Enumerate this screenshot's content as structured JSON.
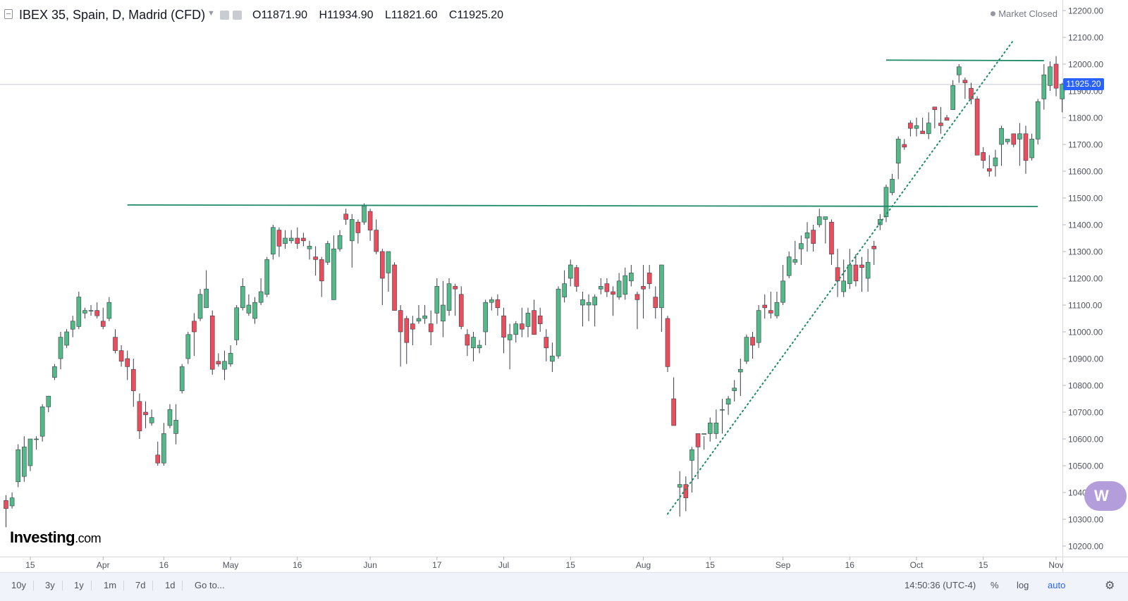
{
  "header": {
    "symbol": "IBEX 35, Spain, D, Madrid (CFD)",
    "open": "O11871.90",
    "high": "H11934.90",
    "low": "L11821.60",
    "close": "C11925.20",
    "market_status": "Market Closed"
  },
  "logo": {
    "name": "Investing",
    "suffix": ".com"
  },
  "last_price_badge": "11925.20",
  "watch_badge": "W",
  "timeframes": [
    "10y",
    "3y",
    "1y",
    "1m",
    "7d",
    "1d"
  ],
  "goto_label": "Go to...",
  "clock": "14:50:36 (UTC-4)",
  "bottom_options": {
    "percent": "%",
    "log": "log",
    "auto": "auto"
  },
  "icons": {
    "menu": "menu-icon",
    "settings": "gear-icon",
    "visibility": "eye-icon",
    "properties": "gear-icon"
  },
  "colors": {
    "up": "#53b987",
    "down": "#eb4d5c",
    "trendline": "#1e8a68",
    "last_price": "#2962ff"
  },
  "chart_data": {
    "type": "candlestick",
    "title": "IBEX 35, Spain, D, Madrid (CFD)",
    "y_ticks": [
      10200,
      10300,
      10400,
      10500,
      10600,
      10700,
      10800,
      10900,
      11000,
      11100,
      11200,
      11300,
      11400,
      11500,
      11600,
      11700,
      11800,
      11900,
      12000,
      12100,
      12200
    ],
    "y_tick_labels": [
      "10200.00",
      "10300.00",
      "10400.00",
      "10500.00",
      "10600.00",
      "10700.00",
      "10800.00",
      "10900.00",
      "11000.00",
      "11100.00",
      "11200.00",
      "11300.00",
      "11400.00",
      "11500.00",
      "11600.00",
      "11700.00",
      "11800.00",
      "11900.00",
      "12000.00",
      "12100.00",
      "12200.00"
    ],
    "ylim": [
      10170,
      12270
    ],
    "x_ticks": [
      {
        "i": 4,
        "label": "15"
      },
      {
        "i": 16,
        "label": "Apr"
      },
      {
        "i": 26,
        "label": "16"
      },
      {
        "i": 37,
        "label": "May"
      },
      {
        "i": 48,
        "label": "16"
      },
      {
        "i": 60,
        "label": "Jun"
      },
      {
        "i": 71,
        "label": "17"
      },
      {
        "i": 82,
        "label": "Jul"
      },
      {
        "i": 93,
        "label": "15"
      },
      {
        "i": 105,
        "label": "Aug"
      },
      {
        "i": 116,
        "label": "15"
      },
      {
        "i": 128,
        "label": "Sep"
      },
      {
        "i": 139,
        "label": "16"
      },
      {
        "i": 150,
        "label": "Oct"
      },
      {
        "i": 161,
        "label": "15"
      },
      {
        "i": 173,
        "label": "Nov"
      }
    ],
    "horizontal_lines": [
      {
        "i1": 20,
        "v1": 11474,
        "i2": 170,
        "v2": 11468
      },
      {
        "i1": 145,
        "v1": 12015,
        "i2": 171,
        "v2": 12013
      }
    ],
    "trend_line": {
      "i1": 109,
      "v1": 10320,
      "i2": 166,
      "v2": 12090
    },
    "last_price": 11925.2,
    "candles": [
      [
        10370,
        10390,
        10270,
        10340
      ],
      [
        10350,
        10400,
        10340,
        10380
      ],
      [
        10440,
        10580,
        10420,
        10560
      ],
      [
        10460,
        10610,
        10440,
        10570
      ],
      [
        10500,
        10600,
        10480,
        10600
      ],
      [
        10600,
        10610,
        10560,
        10600
      ],
      [
        10610,
        10730,
        10590,
        10720
      ],
      [
        10720,
        10760,
        10700,
        10760
      ],
      [
        10830,
        10880,
        10820,
        10870
      ],
      [
        10900,
        11000,
        10860,
        10980
      ],
      [
        10950,
        11010,
        10940,
        11000
      ],
      [
        11010,
        11060,
        10980,
        11040
      ],
      [
        11020,
        11150,
        11010,
        11130
      ],
      [
        11070,
        11090,
        11050,
        11080
      ],
      [
        11080,
        11100,
        11060,
        11080
      ],
      [
        11080,
        11110,
        11050,
        11060
      ],
      [
        11040,
        11090,
        11010,
        11020
      ],
      [
        11050,
        11130,
        11040,
        11110
      ],
      [
        10980,
        11010,
        10920,
        10930
      ],
      [
        10930,
        10950,
        10870,
        10890
      ],
      [
        10900,
        10930,
        10820,
        10870
      ],
      [
        10860,
        10900,
        10720,
        10780
      ],
      [
        10740,
        10770,
        10600,
        10630
      ],
      [
        10700,
        10740,
        10640,
        10690
      ],
      [
        10660,
        10710,
        10650,
        10680
      ],
      [
        10540,
        10590,
        10500,
        10510
      ],
      [
        10510,
        10660,
        10500,
        10620
      ],
      [
        10650,
        10730,
        10640,
        10710
      ],
      [
        10620,
        10730,
        10580,
        10670
      ],
      [
        10780,
        10880,
        10770,
        10870
      ],
      [
        10900,
        11000,
        10880,
        10990
      ],
      [
        11040,
        11070,
        10910,
        11000
      ],
      [
        11050,
        11160,
        11040,
        11140
      ],
      [
        11090,
        11230,
        11090,
        11160
      ],
      [
        11060,
        11080,
        10840,
        10860
      ],
      [
        10890,
        10920,
        10870,
        10880
      ],
      [
        10860,
        10930,
        10820,
        10890
      ],
      [
        10880,
        10950,
        10870,
        10920
      ],
      [
        10970,
        11100,
        10950,
        11090
      ],
      [
        11090,
        11200,
        11080,
        11170
      ],
      [
        11070,
        11140,
        11060,
        11100
      ],
      [
        11050,
        11130,
        11030,
        11110
      ],
      [
        11110,
        11200,
        11100,
        11150
      ],
      [
        11140,
        11280,
        11130,
        11270
      ],
      [
        11290,
        11400,
        11270,
        11390
      ],
      [
        11380,
        11390,
        11280,
        11320
      ],
      [
        11330,
        11380,
        11310,
        11350
      ],
      [
        11340,
        11380,
        11330,
        11350
      ],
      [
        11350,
        11390,
        11310,
        11330
      ],
      [
        11350,
        11370,
        11320,
        11340
      ],
      [
        11310,
        11340,
        11270,
        11320
      ],
      [
        11280,
        11320,
        11210,
        11270
      ],
      [
        11270,
        11280,
        11130,
        11190
      ],
      [
        11260,
        11340,
        11250,
        11330
      ],
      [
        11120,
        11360,
        11120,
        11310
      ],
      [
        11310,
        11380,
        11300,
        11360
      ],
      [
        11440,
        11460,
        11400,
        11420
      ],
      [
        11340,
        11440,
        11240,
        11420
      ],
      [
        11410,
        11420,
        11330,
        11370
      ],
      [
        11410,
        11480,
        11400,
        11470
      ],
      [
        11450,
        11460,
        11340,
        11380
      ],
      [
        11380,
        11420,
        11290,
        11300
      ],
      [
        11300,
        11310,
        11100,
        11200
      ],
      [
        11220,
        11300,
        11150,
        11300
      ],
      [
        11250,
        11260,
        11100,
        11080
      ],
      [
        11080,
        11100,
        10870,
        11000
      ],
      [
        11050,
        11060,
        10880,
        10960
      ],
      [
        11030,
        11060,
        10950,
        11010
      ],
      [
        11040,
        11100,
        11030,
        11050
      ],
      [
        11050,
        11100,
        11030,
        11060
      ],
      [
        11030,
        11080,
        10950,
        11000
      ],
      [
        11070,
        11200,
        11030,
        11170
      ],
      [
        11040,
        11190,
        10980,
        11100
      ],
      [
        11080,
        11200,
        11060,
        11180
      ],
      [
        11170,
        11180,
        11060,
        11160
      ],
      [
        11140,
        11170,
        11010,
        11020
      ],
      [
        10990,
        11010,
        10910,
        10950
      ],
      [
        10940,
        11000,
        10890,
        10980
      ],
      [
        10940,
        10970,
        10920,
        10950
      ],
      [
        11000,
        11120,
        10950,
        11110
      ],
      [
        11110,
        11130,
        11080,
        11120
      ],
      [
        11120,
        11140,
        11060,
        11090
      ],
      [
        11060,
        11090,
        10920,
        10980
      ],
      [
        10970,
        11030,
        10860,
        10990
      ],
      [
        10990,
        11040,
        10960,
        11030
      ],
      [
        11030,
        11090,
        10980,
        11010
      ],
      [
        11020,
        11090,
        10980,
        11070
      ],
      [
        11080,
        11120,
        10990,
        10990
      ],
      [
        11060,
        11090,
        11000,
        11030
      ],
      [
        10980,
        11010,
        10890,
        10940
      ],
      [
        10890,
        10960,
        10850,
        10910
      ],
      [
        10910,
        11170,
        10900,
        11160
      ],
      [
        11130,
        11230,
        11110,
        11180
      ],
      [
        11200,
        11270,
        11170,
        11250
      ],
      [
        11240,
        11250,
        11150,
        11170
      ],
      [
        11100,
        11150,
        11020,
        11120
      ],
      [
        11100,
        11140,
        11040,
        11110
      ],
      [
        11100,
        11140,
        11020,
        11130
      ],
      [
        11160,
        11200,
        11140,
        11170
      ],
      [
        11180,
        11200,
        11130,
        11150
      ],
      [
        11150,
        11170,
        11060,
        11140
      ],
      [
        11130,
        11220,
        11120,
        11190
      ],
      [
        11140,
        11240,
        11120,
        11210
      ],
      [
        11190,
        11250,
        11170,
        11220
      ],
      [
        11140,
        11150,
        11010,
        11120
      ],
      [
        11170,
        11250,
        11050,
        11160
      ],
      [
        11220,
        11250,
        11160,
        11180
      ],
      [
        11130,
        11170,
        11050,
        11090
      ],
      [
        11090,
        11250,
        11000,
        11250
      ],
      [
        11050,
        11060,
        10850,
        10870
      ],
      [
        10750,
        10830,
        10650,
        10650
      ],
      [
        10420,
        10480,
        10310,
        10430
      ],
      [
        10430,
        10460,
        10330,
        10380
      ],
      [
        10520,
        10570,
        10400,
        10560
      ],
      [
        10620,
        10620,
        10450,
        10570
      ],
      [
        10620,
        10610,
        10560,
        10620
      ],
      [
        10620,
        10680,
        10590,
        10660
      ],
      [
        10620,
        10710,
        10600,
        10660
      ],
      [
        10710,
        10750,
        10620,
        10710
      ],
      [
        10730,
        10760,
        10690,
        10750
      ],
      [
        10780,
        10820,
        10740,
        10790
      ],
      [
        10850,
        10900,
        10760,
        10860
      ],
      [
        10890,
        10990,
        10880,
        10980
      ],
      [
        10980,
        11000,
        10900,
        10950
      ],
      [
        10960,
        11100,
        10940,
        11080
      ],
      [
        11100,
        11140,
        11050,
        11090
      ],
      [
        11080,
        11150,
        11050,
        11070
      ],
      [
        11060,
        11150,
        11050,
        11110
      ],
      [
        11110,
        11250,
        11100,
        11190
      ],
      [
        11210,
        11300,
        11200,
        11280
      ],
      [
        11260,
        11340,
        11250,
        11270
      ],
      [
        11310,
        11360,
        11250,
        11330
      ],
      [
        11350,
        11410,
        11300,
        11370
      ],
      [
        11380,
        11400,
        11300,
        11330
      ],
      [
        11400,
        11460,
        11390,
        11430
      ],
      [
        11420,
        11430,
        11330,
        11430
      ],
      [
        11410,
        11420,
        11250,
        11290
      ],
      [
        11240,
        11310,
        11130,
        11190
      ],
      [
        11150,
        11270,
        11130,
        11190
      ],
      [
        11180,
        11310,
        11160,
        11250
      ],
      [
        11250,
        11290,
        11170,
        11190
      ],
      [
        11250,
        11280,
        11150,
        11240
      ],
      [
        11200,
        11310,
        11150,
        11260
      ],
      [
        11320,
        11340,
        11250,
        11310
      ],
      [
        11400,
        11440,
        11380,
        11420
      ],
      [
        11430,
        11550,
        11410,
        11540
      ],
      [
        11520,
        11590,
        11510,
        11570
      ],
      [
        11630,
        11730,
        11570,
        11720
      ],
      [
        11700,
        11720,
        11680,
        11690
      ],
      [
        11780,
        11790,
        11730,
        11760
      ],
      [
        11760,
        11800,
        11730,
        11770
      ],
      [
        11750,
        11800,
        11740,
        11740
      ],
      [
        11740,
        11820,
        11720,
        11780
      ],
      [
        11840,
        11840,
        11760,
        11830
      ],
      [
        11780,
        11840,
        11740,
        11770
      ],
      [
        11800,
        11810,
        11790,
        11790
      ],
      [
        11830,
        11940,
        11830,
        11920
      ],
      [
        11960,
        12000,
        11930,
        11990
      ],
      [
        11940,
        11950,
        11870,
        11930
      ],
      [
        11910,
        11930,
        11850,
        11870
      ],
      [
        11870,
        11880,
        11660,
        11660
      ],
      [
        11670,
        11690,
        11610,
        11640
      ],
      [
        11610,
        11660,
        11580,
        11600
      ],
      [
        11620,
        11680,
        11580,
        11650
      ],
      [
        11700,
        11770,
        11620,
        11760
      ],
      [
        11710,
        11720,
        11700,
        11720
      ],
      [
        11740,
        11720,
        11690,
        11700
      ],
      [
        11720,
        11780,
        11620,
        11740
      ],
      [
        11740,
        11770,
        11590,
        11640
      ],
      [
        11650,
        11740,
        11640,
        11720
      ],
      [
        11720,
        11870,
        11700,
        11860
      ],
      [
        11870,
        12000,
        11830,
        11960
      ],
      [
        11920,
        12010,
        11900,
        11990
      ],
      [
        12000,
        12030,
        11880,
        11910
      ],
      [
        11870,
        11930,
        11820,
        11925
      ]
    ]
  }
}
